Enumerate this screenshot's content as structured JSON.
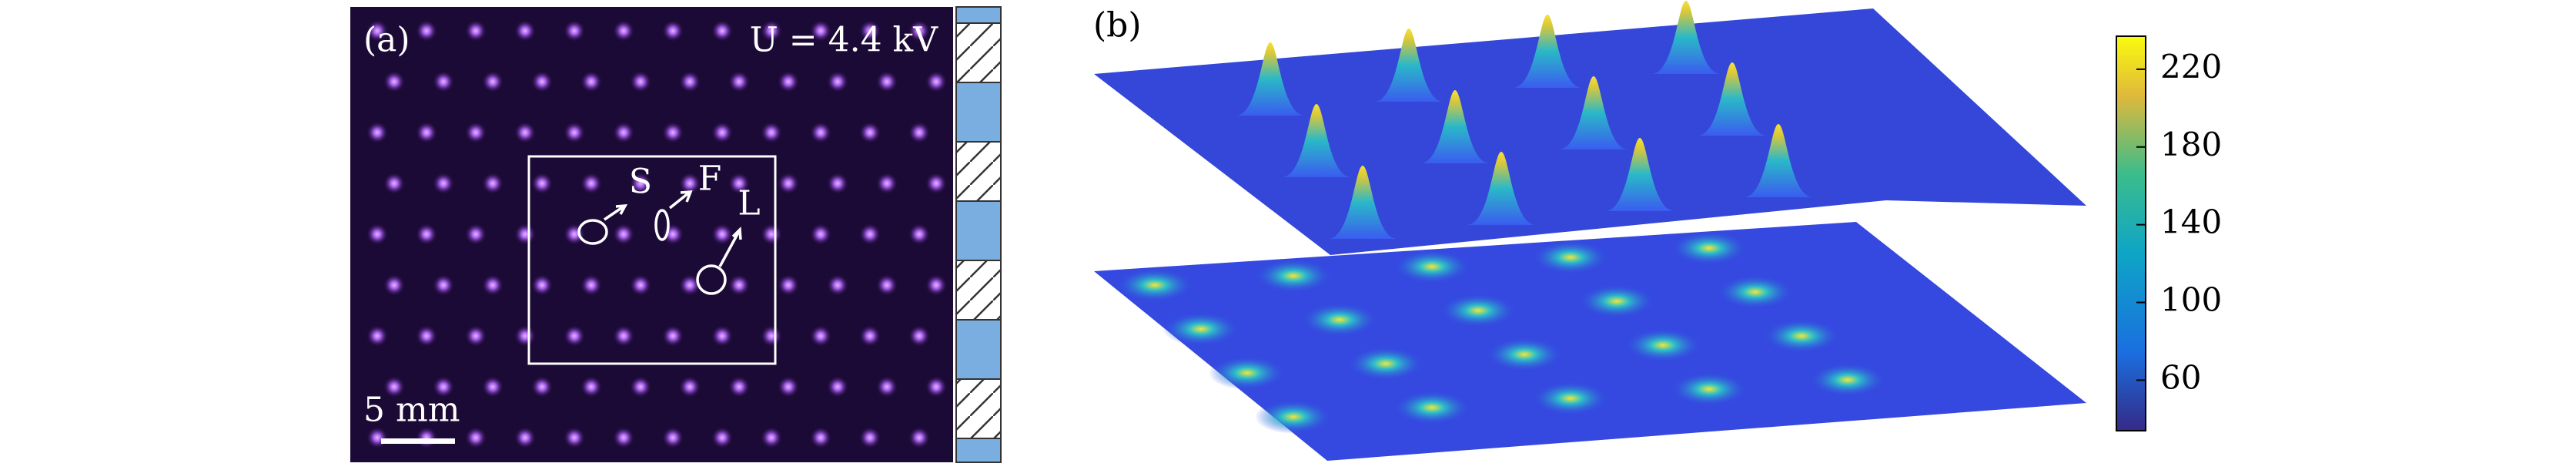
{
  "panel_a": {
    "label": "(a)",
    "voltage": "U = 4.4 kV",
    "scale_bar": "5 mm",
    "annotations": [
      "S",
      "F",
      "L"
    ]
  },
  "panel_b": {
    "label": "(b)",
    "colorbar": {
      "lim": [
        34,
        237
      ],
      "ticks": [
        60,
        100,
        140,
        180,
        220
      ]
    }
  }
}
